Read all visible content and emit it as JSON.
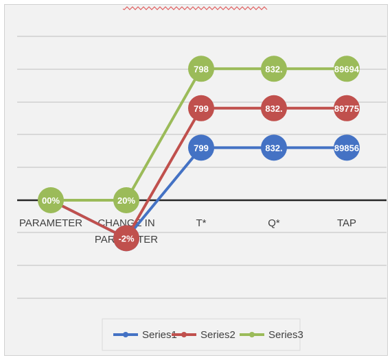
{
  "chart_data": {
    "type": "line",
    "categories": [
      "PARAMETER",
      "CHANGE IN PARAMETER",
      "T*",
      "Q*",
      "TAP"
    ],
    "category_lines": [
      [
        "PARAMETER"
      ],
      [
        "CHANGE IN",
        "PARAMETER"
      ],
      [
        "T*"
      ],
      [
        "Q*"
      ],
      [
        "TAP"
      ]
    ],
    "series": [
      {
        "name": "Series1",
        "color": "#4472c4",
        "values": [
          0,
          -2.6,
          3.6,
          3.6,
          3.6
        ],
        "labels": [
          "",
          "-2%",
          "799",
          "832.",
          "89856"
        ]
      },
      {
        "name": "Series2",
        "color": "#c0504d",
        "values": [
          0,
          -2.6,
          6.3,
          6.3,
          6.3
        ],
        "labels": [
          "",
          "-2%",
          "799",
          "832.",
          "89775"
        ]
      },
      {
        "name": "Series3",
        "color": "#9bbb59",
        "values": [
          0,
          0,
          9.0,
          9.0,
          9.0
        ],
        "labels": [
          "00%",
          "20%",
          "798",
          "832.",
          "89694"
        ]
      }
    ],
    "ylim": [
      -3.2,
      10.8
    ],
    "grid": true,
    "legend": "bottom"
  }
}
